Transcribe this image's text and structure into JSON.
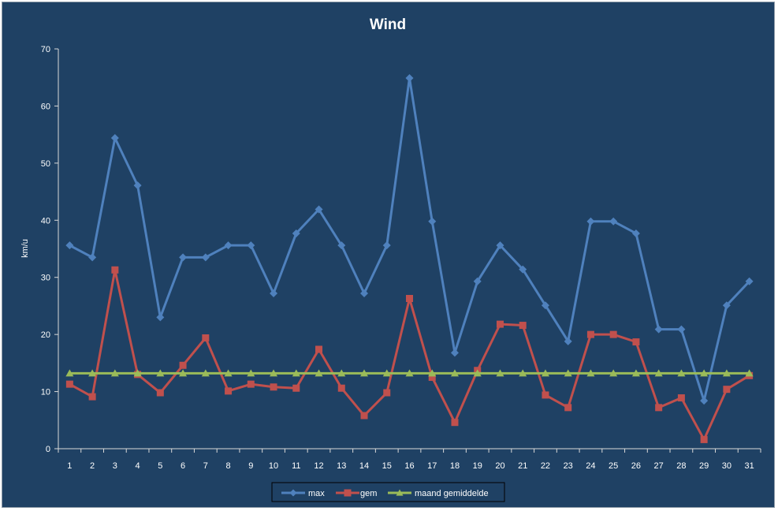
{
  "chart_data": {
    "type": "line",
    "title": "Wind",
    "xlabel": "",
    "ylabel": "km/u",
    "ylim": [
      0,
      70
    ],
    "yticks": [
      0,
      10,
      20,
      30,
      40,
      50,
      60,
      70
    ],
    "grid": false,
    "legend_position": "bottom",
    "background_color": "#1f4164",
    "categories": [
      "1",
      "2",
      "3",
      "4",
      "5",
      "6",
      "7",
      "8",
      "9",
      "10",
      "11",
      "12",
      "13",
      "14",
      "15",
      "16",
      "17",
      "18",
      "19",
      "20",
      "21",
      "22",
      "23",
      "24",
      "25",
      "26",
      "27",
      "28",
      "29",
      "30",
      "31"
    ],
    "series": [
      {
        "name": "max",
        "color": "#4f81bd",
        "marker": "diamond",
        "values": [
          35.6,
          33.5,
          54.4,
          46.1,
          23.0,
          33.5,
          33.5,
          35.6,
          35.6,
          27.2,
          37.7,
          41.9,
          35.6,
          27.2,
          35.6,
          64.9,
          39.8,
          16.8,
          29.3,
          35.6,
          31.4,
          25.1,
          18.8,
          39.8,
          39.8,
          37.7,
          20.9,
          20.9,
          8.4,
          25.1,
          29.3
        ]
      },
      {
        "name": "gem",
        "color": "#c0504d",
        "marker": "square",
        "values": [
          11.3,
          9.1,
          31.3,
          13.0,
          9.8,
          14.6,
          19.4,
          10.1,
          11.3,
          10.8,
          10.6,
          17.4,
          10.6,
          5.8,
          9.8,
          26.3,
          12.5,
          4.6,
          13.7,
          21.8,
          21.6,
          9.4,
          7.2,
          20.0,
          20.0,
          18.7,
          7.2,
          8.9,
          1.6,
          10.4,
          12.8
        ]
      },
      {
        "name": "maand gemiddelde",
        "color": "#9bbb59",
        "marker": "triangle",
        "values": [
          13.2,
          13.2,
          13.2,
          13.2,
          13.2,
          13.2,
          13.2,
          13.2,
          13.2,
          13.2,
          13.2,
          13.2,
          13.2,
          13.2,
          13.2,
          13.2,
          13.2,
          13.2,
          13.2,
          13.2,
          13.2,
          13.2,
          13.2,
          13.2,
          13.2,
          13.2,
          13.2,
          13.2,
          13.2,
          13.2,
          13.2
        ]
      }
    ]
  }
}
